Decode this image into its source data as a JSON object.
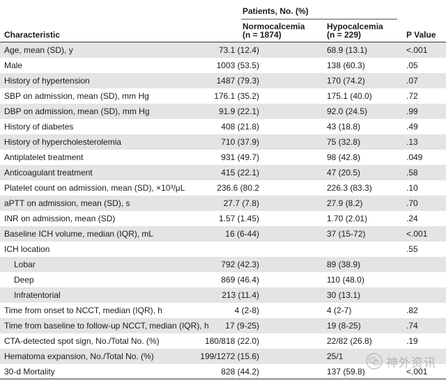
{
  "header": {
    "characteristic": "Characteristic",
    "patients_group": "Patients, No. (%)",
    "normo_name": "Normocalcemia",
    "normo_n": "(n = 1874)",
    "hypo_name": "Hypocalcemia",
    "hypo_n": "(n = 229)",
    "p_value": "P Value"
  },
  "rows": [
    {
      "label": "Age, mean (SD), y",
      "normo": "73.1 (12.4)",
      "hypo": "68.9 (13.1)",
      "p": "<.001"
    },
    {
      "label": "Male",
      "normo": "1003 (53.5)",
      "hypo": "138 (60.3)",
      "p": ".05"
    },
    {
      "label": "History of hypertension",
      "normo": "1487 (79.3)",
      "hypo": "170 (74.2)",
      "p": ".07"
    },
    {
      "label": "SBP on admission, mean (SD), mm Hg",
      "normo": "176.1 (35.2)",
      "hypo": "175.1 (40.0)",
      "p": ".72"
    },
    {
      "label": "DBP on admission, mean (SD), mm Hg",
      "normo": "91.9 (22.1)",
      "hypo": "92.0 (24.5)",
      "p": ".99"
    },
    {
      "label": "History of diabetes",
      "normo": "408 (21.8)",
      "hypo": "43 (18.8)",
      "p": ".49"
    },
    {
      "label": "History of hypercholesterolemia",
      "normo": "710 (37.9)",
      "hypo": "75 (32.8)",
      "p": ".13"
    },
    {
      "label": "Antiplatelet treatment",
      "normo": "931 (49.7)",
      "hypo": "98 (42.8)",
      "p": ".049"
    },
    {
      "label": "Anticoagulant treatment",
      "normo": "415 (22.1)",
      "hypo": "47 (20.5)",
      "p": ".58"
    },
    {
      "label": "Platelet count on admission, mean (SD), ×10³/μL",
      "normo": "236.6 (80.2",
      "hypo": "226.3 (83.3)",
      "p": ".10"
    },
    {
      "label": "aPTT on admission, mean (SD), s",
      "normo": "27.7 (7.8)",
      "hypo": "27.9 (8.2)",
      "p": ".70"
    },
    {
      "label": "INR on admission, mean (SD)",
      "normo": "1.57 (1.45)",
      "hypo": "1.70 (2.01)",
      "p": ".24"
    },
    {
      "label": "Baseline ICH volume, median (IQR), mL",
      "normo": "16 (6-44)",
      "hypo": "37 (15-72)",
      "p": "<.001"
    },
    {
      "label": "ICH location",
      "normo": "",
      "hypo": "",
      "p": ".55"
    },
    {
      "label": "Lobar",
      "normo": "792 (42.3)",
      "hypo": "89 (38.9)",
      "p": ""
    },
    {
      "label": "Deep",
      "normo": "869 (46.4)",
      "hypo": "110 (48.0)",
      "p": ""
    },
    {
      "label": "Infratentorial",
      "normo": "213 (11.4)",
      "hypo": "30 (13.1)",
      "p": ""
    },
    {
      "label": "Time from onset to NCCT, median (IQR), h",
      "normo": "4 (2-8)",
      "hypo": "4 (2-7)",
      "p": ".82"
    },
    {
      "label": "Time from baseline to follow-up NCCT, median (IQR), h",
      "normo": "17 (9-25)",
      "hypo": "19 (8-25)",
      "p": ".74"
    },
    {
      "label": "CTA-detected spot sign, No./Total No. (%)",
      "normo": "180/818 (22.0)",
      "hypo": "22/82 (26.8)",
      "p": ".19"
    },
    {
      "label": "Hematoma expansion, No./Total No. (%)",
      "normo": "199/1272 (15.6)",
      "hypo": "25/1",
      "p": ""
    },
    {
      "label": "30-d Mortality",
      "normo": "828 (44.2)",
      "hypo": "137 (59.8)",
      "p": "<.001"
    }
  ],
  "watermark": {
    "text": "神外资讯",
    "icon": "wechat-icon"
  },
  "colors": {
    "shade": "#e4e4e4",
    "rule": "#333333",
    "text": "#1a1a1a"
  }
}
